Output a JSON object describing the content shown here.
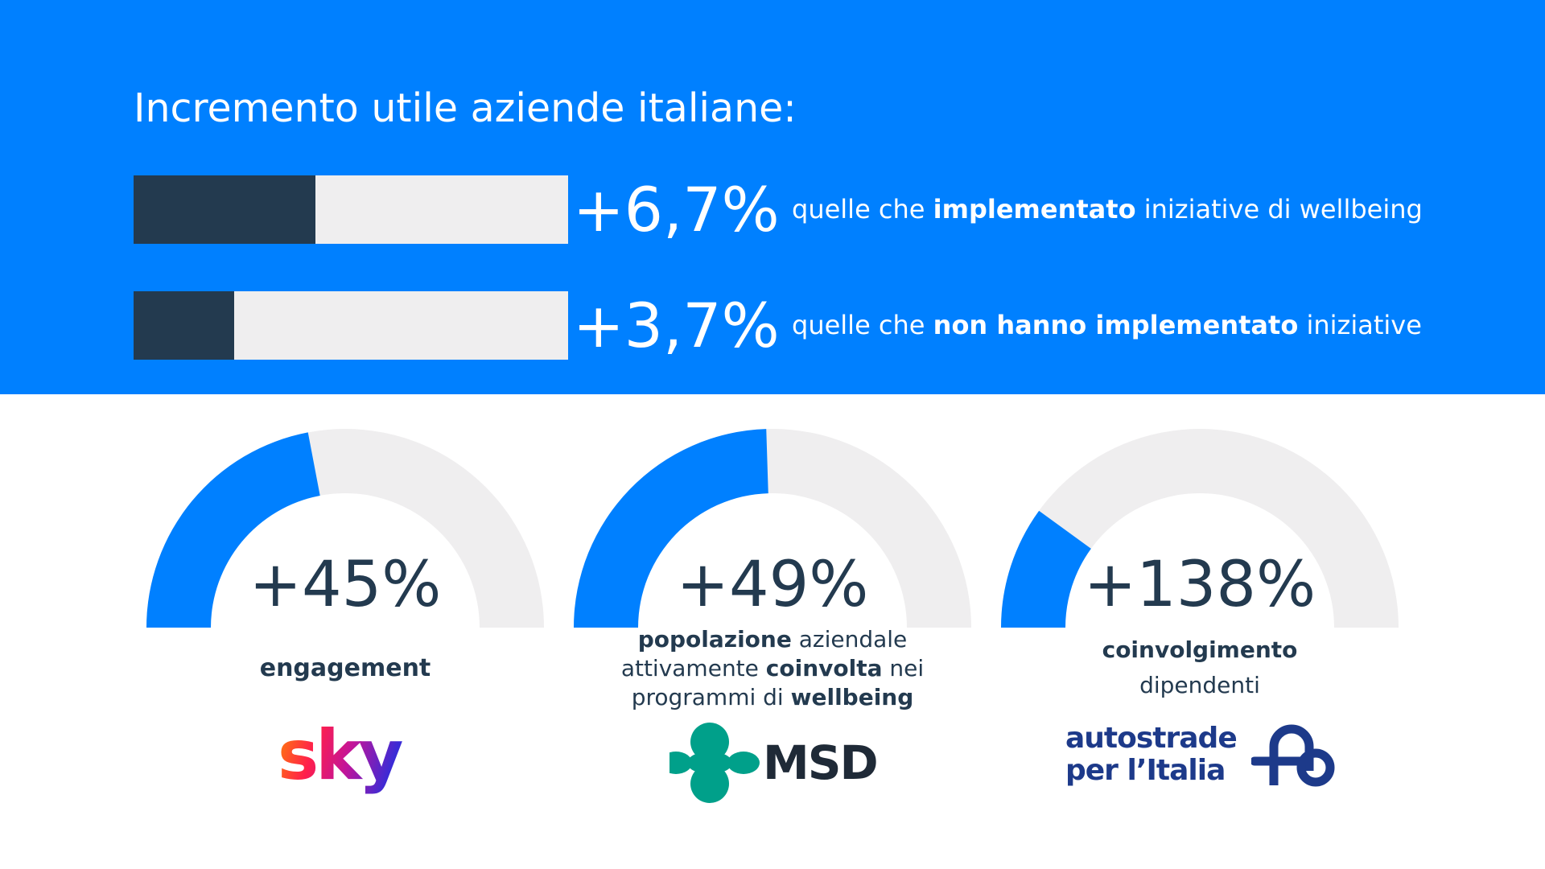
{
  "colors": {
    "blue": "#0080ff",
    "dark": "#233a4f",
    "track": "#efeeef",
    "msd_teal": "#00a08a",
    "aspi_navy": "#1d3a8a"
  },
  "chart_data": [
    {
      "type": "bar",
      "title": "Incremento utile aziende italiane:",
      "orientation": "horizontal",
      "xlim": [
        0,
        16
      ],
      "bars": [
        {
          "value": 6.7,
          "label": "+6,7%",
          "desc_pre": "quelle che ",
          "desc_bold": "implementato",
          "desc_post": " iniziative di wellbeing"
        },
        {
          "value": 3.7,
          "label": "+3,7%",
          "desc_pre": "quelle che ",
          "desc_bold": "non hanno implementato",
          "desc_post": " iniziative"
        }
      ]
    },
    {
      "type": "gauge",
      "gauges": [
        {
          "value": 45,
          "fill_fraction": 0.44,
          "label": "+45%",
          "company": "sky",
          "caption": [
            [
              {
                "t": "engagement",
                "b": true
              }
            ]
          ]
        },
        {
          "value": 49,
          "fill_fraction": 0.49,
          "label": "+49%",
          "company": "MSD",
          "caption": [
            [
              {
                "t": "popolazione",
                "b": true
              },
              {
                "t": " aziendale",
                "b": false
              }
            ],
            [
              {
                "t": "attivamente ",
                "b": false
              },
              {
                "t": "coinvolta",
                "b": true
              },
              {
                "t": " nei",
                "b": false
              }
            ],
            [
              {
                "t": "programmi di ",
                "b": false
              },
              {
                "t": "wellbeing",
                "b": true
              }
            ]
          ]
        },
        {
          "value": 138,
          "fill_fraction": 0.2,
          "label": "+138%",
          "company": "autostrade per l'Italia",
          "caption": [
            [
              {
                "t": "coinvolgimento",
                "b": true
              }
            ],
            [
              {
                "t": "dipendenti",
                "b": false
              }
            ]
          ]
        }
      ]
    }
  ],
  "logos": {
    "sky": "sky",
    "msd": "MSD",
    "aspi_line1": "autostrade",
    "aspi_line2": "per l’Italia"
  }
}
